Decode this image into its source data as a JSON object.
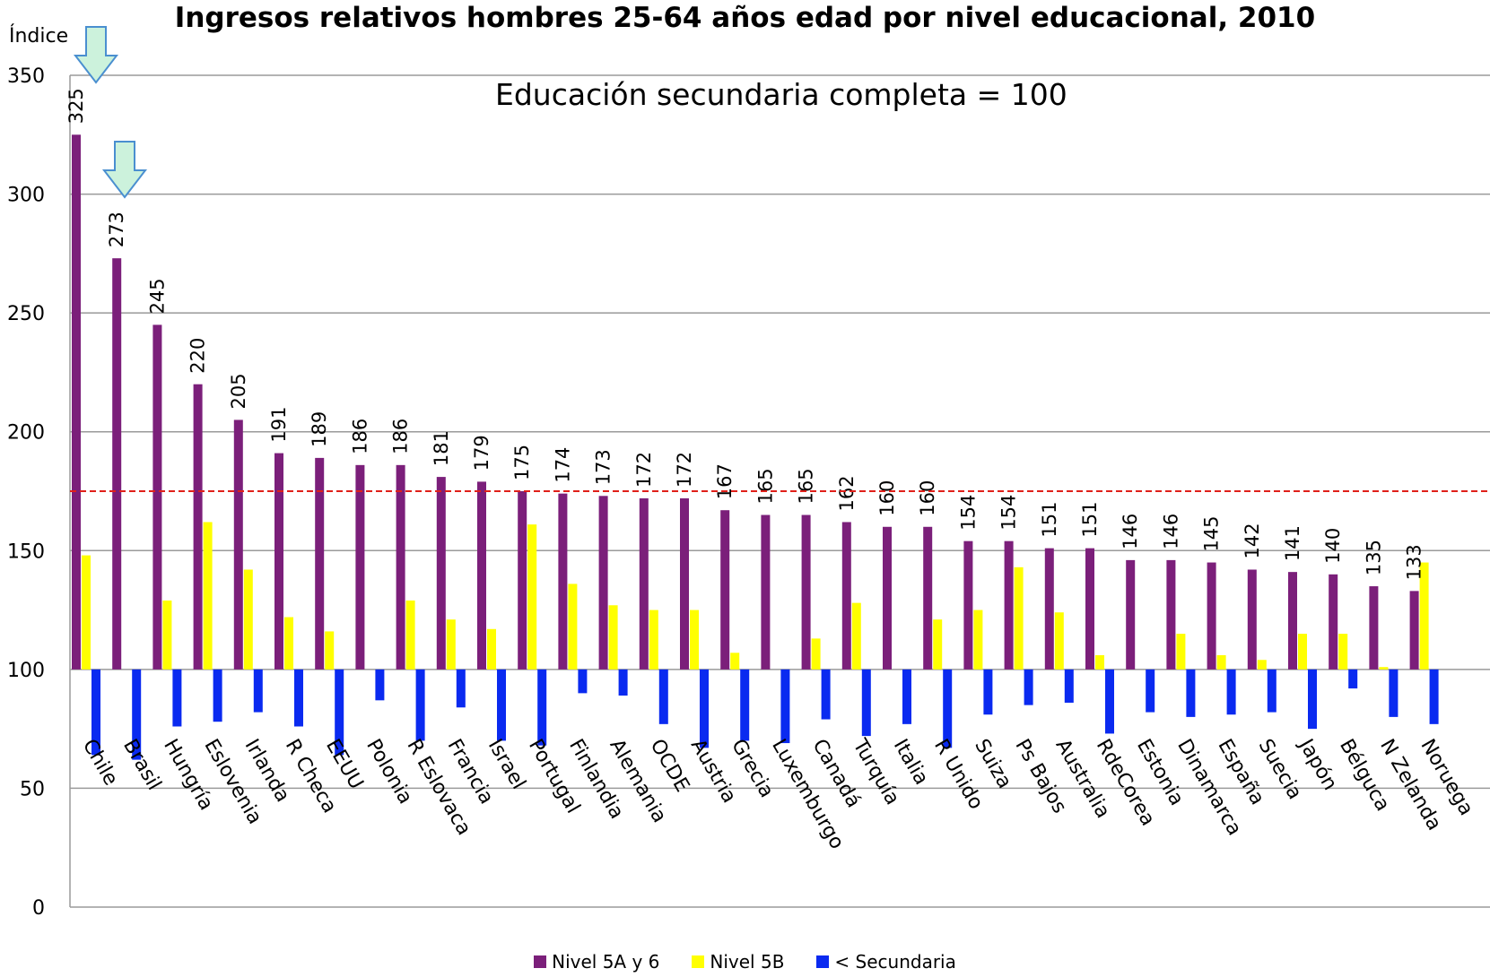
{
  "chart_data": {
    "type": "bar",
    "title": "Ingresos relativos hombres 25-64 años edad por nivel educacional, 2010",
    "subtitle": "Educación secundaria completa = 100",
    "ylabel": "Índice",
    "ylim": [
      0,
      350
    ],
    "yticks": [
      0,
      50,
      100,
      150,
      200,
      250,
      300,
      350
    ],
    "baseline": 100,
    "reference_line": 175,
    "grid": true,
    "legend_position": "bottom",
    "categories": [
      "Chile",
      "Brasil",
      "Hungría",
      "Eslovenia",
      "Irlanda",
      "R Checa",
      "EEUU",
      "Polonia",
      "R Eslovaca",
      "Francia",
      "Israel",
      "Portugal",
      "Finlandia",
      "Alemania",
      "OCDE",
      "Austria",
      "Grecia",
      "Luxemburgo",
      "Canadá",
      "Turquía",
      "Italia",
      "R Unido",
      "Suiza",
      "Ps Bajos",
      "Australia",
      "RdeCorea",
      "Estonia",
      "Dinamarca",
      "España",
      "Suecia",
      "Japón",
      "Bélguca",
      "N Zelanda",
      "Noruega"
    ],
    "series": [
      {
        "name": "Nivel 5A y 6",
        "color": "#7B1F7A",
        "values": [
          325,
          273,
          245,
          220,
          205,
          191,
          189,
          186,
          186,
          181,
          179,
          175,
          174,
          173,
          172,
          172,
          167,
          165,
          165,
          162,
          160,
          160,
          154,
          154,
          151,
          151,
          146,
          146,
          145,
          142,
          141,
          140,
          135,
          133
        ]
      },
      {
        "name": "Nivel 5B",
        "color": "#FFFF00",
        "values": [
          148,
          100,
          129,
          162,
          142,
          122,
          116,
          100,
          129,
          121,
          117,
          161,
          136,
          127,
          125,
          125,
          107,
          100,
          113,
          128,
          100,
          121,
          125,
          143,
          124,
          106,
          100,
          115,
          106,
          104,
          115,
          115,
          101,
          145
        ]
      },
      {
        "name": "< Secundaria",
        "color": "#0A2AF0",
        "values": [
          64,
          62,
          76,
          78,
          82,
          76,
          64,
          87,
          70,
          84,
          70,
          68,
          90,
          89,
          77,
          67,
          70,
          69,
          79,
          72,
          77,
          67,
          81,
          85,
          86,
          73,
          82,
          80,
          81,
          82,
          75,
          92,
          80,
          77
        ]
      }
    ],
    "data_labels": [
      "325",
      "273",
      "245",
      "220",
      "205",
      "191",
      "189",
      "186",
      "186",
      "181",
      "179",
      "175",
      "174",
      "173",
      "172",
      "172",
      "167",
      "165",
      "165",
      "162",
      "160",
      "160",
      "154",
      "154",
      "151",
      "151",
      "146",
      "146",
      "145",
      "142",
      "141",
      "140",
      "135",
      "133"
    ]
  }
}
